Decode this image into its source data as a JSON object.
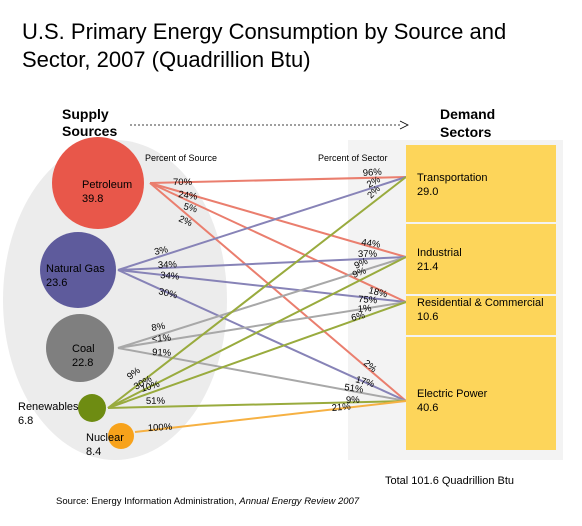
{
  "title": "U.S. Primary Energy Consumption by Source and Sector, 2007 (Quadrillion Btu)",
  "supply_header": [
    "Supply",
    "Sources"
  ],
  "demand_header": [
    "Demand",
    "Sectors"
  ],
  "percent_of_source": "Percent of Source",
  "percent_of_sector": "Percent of Sector",
  "colors": {
    "petroleum": "#e8574a",
    "natural_gas": "#5e5b9c",
    "coal": "#7f7f7f",
    "renewables": "#6e8c12",
    "nuclear": "#f7a21b",
    "sector_box": "#fdd55a",
    "panel": "#ececec",
    "petroleum_line": "#ea7e6e",
    "gas_line": "#8783b7",
    "coal_line": "#a8a8a8",
    "renewables_line": "#99ab3e",
    "nuclear_line": "#f6b143"
  },
  "sources": [
    {
      "id": "petroleum",
      "name": "Petroleum",
      "value": "39.8",
      "icon": "petroleum-circle"
    },
    {
      "id": "natural_gas",
      "name": "Natural Gas",
      "value": "23.6",
      "icon": "natural-gas-circle"
    },
    {
      "id": "coal",
      "name": "Coal",
      "value": "22.8",
      "icon": "coal-circle"
    },
    {
      "id": "renewables",
      "name": "Renewables",
      "value": "6.8",
      "icon": "renewables-circle"
    },
    {
      "id": "nuclear",
      "name": "Nuclear",
      "value": "8.4",
      "icon": "nuclear-circle"
    }
  ],
  "sectors": [
    {
      "id": "transportation",
      "name": "Transportation",
      "value": "29.0"
    },
    {
      "id": "industrial",
      "name": "Industrial",
      "value": "21.4"
    },
    {
      "id": "residential",
      "name": "Residential & Commercial",
      "value": "10.6"
    },
    {
      "id": "electric",
      "name": "Electric Power",
      "value": "40.6"
    }
  ],
  "flows": [
    {
      "source": "petroleum",
      "sector": "transportation",
      "pct_source": "70%",
      "pct_sector": "96%"
    },
    {
      "source": "petroleum",
      "sector": "industrial",
      "pct_source": "24%",
      "pct_sector": "44%"
    },
    {
      "source": "petroleum",
      "sector": "residential",
      "pct_source": "5%",
      "pct_sector": "18%"
    },
    {
      "source": "petroleum",
      "sector": "electric",
      "pct_source": "2%",
      "pct_sector": "2%"
    },
    {
      "source": "natural_gas",
      "sector": "transportation",
      "pct_source": "3%",
      "pct_sector": "2%"
    },
    {
      "source": "natural_gas",
      "sector": "industrial",
      "pct_source": "34%",
      "pct_sector": "37%"
    },
    {
      "source": "natural_gas",
      "sector": "residential",
      "pct_source": "34%",
      "pct_sector": "75%"
    },
    {
      "source": "natural_gas",
      "sector": "electric",
      "pct_source": "30%",
      "pct_sector": "17%"
    },
    {
      "source": "coal",
      "sector": "industrial",
      "pct_source": "8%",
      "pct_sector": "9%"
    },
    {
      "source": "coal",
      "sector": "residential",
      "pct_source": "<1%",
      "pct_sector": "1%"
    },
    {
      "source": "coal",
      "sector": "electric",
      "pct_source": "91%",
      "pct_sector": "51%"
    },
    {
      "source": "renewables",
      "sector": "transportation",
      "pct_source": "9%",
      "pct_sector": "2%"
    },
    {
      "source": "renewables",
      "sector": "industrial",
      "pct_source": "30%",
      "pct_sector": "9%"
    },
    {
      "source": "renewables",
      "sector": "residential",
      "pct_source": "10%",
      "pct_sector": "6%"
    },
    {
      "source": "renewables",
      "sector": "electric",
      "pct_source": "51%",
      "pct_sector": "9%"
    },
    {
      "source": "nuclear",
      "sector": "electric",
      "pct_source": "100%",
      "pct_sector": "21%"
    }
  ],
  "total_label": "Total   101.6 Quadrillion Btu",
  "source_note": {
    "prefix": "Source:  Energy Information Administration, ",
    "italic": "Annual Energy Review 2007"
  }
}
